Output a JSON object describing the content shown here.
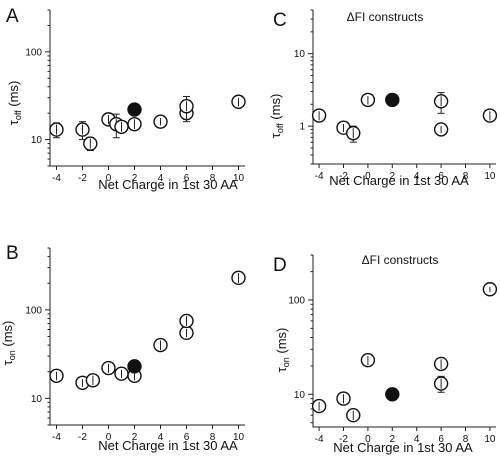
{
  "chart_data": [
    {
      "panel": "A",
      "type": "scatter",
      "title": "",
      "xlabel": "Net Charge in 1st 30 AA",
      "ylabel": "τ_off (ms)",
      "ylabel_main": "τ",
      "ylabel_sub": "off",
      "ylabel_unit": " (ms)",
      "xlim": [
        -4.5,
        10.5
      ],
      "ylim": [
        5,
        300
      ],
      "yscale": "log",
      "xticks": [
        -4,
        -2,
        0,
        2,
        4,
        6,
        8,
        10
      ],
      "yticks": [
        10,
        100
      ],
      "points": [
        {
          "x": -4,
          "y": 13,
          "err": 2.5,
          "filled": false
        },
        {
          "x": -2,
          "y": 13,
          "err": 3,
          "filled": false
        },
        {
          "x": -1.4,
          "y": 9,
          "err": 1.5,
          "filled": false
        },
        {
          "x": 0,
          "y": 17,
          "err": 2,
          "filled": false
        },
        {
          "x": 0.6,
          "y": 15,
          "err": 4.5,
          "filled": false
        },
        {
          "x": 1,
          "y": 14,
          "err": 2,
          "filled": false
        },
        {
          "x": 2,
          "y": 15,
          "err": 2,
          "filled": false
        },
        {
          "x": 2,
          "y": 22,
          "err": 0,
          "filled": true
        },
        {
          "x": 4,
          "y": 16,
          "err": 1.5,
          "filled": false
        },
        {
          "x": 6,
          "y": 20,
          "err": 4,
          "filled": false
        },
        {
          "x": 6,
          "y": 24,
          "err": 7,
          "filled": false
        },
        {
          "x": 10,
          "y": 27,
          "err": 3,
          "filled": false
        }
      ]
    },
    {
      "panel": "B",
      "type": "scatter",
      "title": "",
      "xlabel": "Net Charge in 1st 30 AA",
      "ylabel": "τ_on (ms)",
      "ylabel_main": "τ",
      "ylabel_sub": "on",
      "ylabel_unit": " (ms)",
      "xlim": [
        -4.5,
        10.5
      ],
      "ylim": [
        5,
        500
      ],
      "yscale": "log",
      "xticks": [
        -4,
        -2,
        0,
        2,
        4,
        6,
        8,
        10
      ],
      "yticks": [
        10,
        100
      ],
      "points": [
        {
          "x": -4,
          "y": 18,
          "err": 2,
          "filled": false
        },
        {
          "x": -2,
          "y": 15,
          "err": 1.5,
          "filled": false
        },
        {
          "x": -1.2,
          "y": 16,
          "err": 2,
          "filled": false
        },
        {
          "x": 0,
          "y": 22,
          "err": 2.5,
          "filled": false
        },
        {
          "x": 1,
          "y": 19,
          "err": 2,
          "filled": false
        },
        {
          "x": 2,
          "y": 18,
          "err": 2,
          "filled": false
        },
        {
          "x": 2,
          "y": 23,
          "err": 0,
          "filled": true
        },
        {
          "x": 4,
          "y": 40,
          "err": 5,
          "filled": false
        },
        {
          "x": 6,
          "y": 55,
          "err": 6,
          "filled": false
        },
        {
          "x": 6,
          "y": 75,
          "err": 10,
          "filled": false
        },
        {
          "x": 10,
          "y": 230,
          "err": 30,
          "filled": false
        }
      ]
    },
    {
      "panel": "C",
      "type": "scatter",
      "title": "ΔFI constructs",
      "xlabel": "Net Charge in 1st 30 AA",
      "ylabel": "τ_off (ms)",
      "ylabel_main": "τ",
      "ylabel_sub": "off",
      "ylabel_unit": " (ms)",
      "xlim": [
        -4.5,
        10.5
      ],
      "ylim": [
        0.3,
        40
      ],
      "yscale": "log",
      "xticks": [
        -4,
        -2,
        0,
        2,
        4,
        6,
        8,
        10
      ],
      "yticks": [
        1,
        10
      ],
      "points": [
        {
          "x": -4,
          "y": 1.4,
          "err": 0.2,
          "filled": false
        },
        {
          "x": -2,
          "y": 0.95,
          "err": 0.12,
          "filled": false
        },
        {
          "x": -1.2,
          "y": 0.8,
          "err": 0.2,
          "filled": false
        },
        {
          "x": 0,
          "y": 2.3,
          "err": 0.3,
          "filled": false
        },
        {
          "x": 2,
          "y": 2.3,
          "err": 0,
          "filled": true
        },
        {
          "x": 6,
          "y": 0.9,
          "err": 0.1,
          "filled": false
        },
        {
          "x": 6,
          "y": 2.2,
          "err": 0.7,
          "filled": false
        },
        {
          "x": 10,
          "y": 1.4,
          "err": 0.2,
          "filled": false
        }
      ]
    },
    {
      "panel": "D",
      "type": "scatter",
      "title": "ΔFI constructs",
      "xlabel": "Net Charge in 1st 30 AA",
      "ylabel": "τ_on (ms)",
      "ylabel_main": "τ",
      "ylabel_sub": "on",
      "ylabel_unit": " (ms)",
      "xlim": [
        -4.5,
        10.5
      ],
      "ylim": [
        4.5,
        300
      ],
      "yscale": "log",
      "xticks": [
        -4,
        -2,
        0,
        2,
        4,
        6,
        8,
        10
      ],
      "yticks": [
        10,
        100
      ],
      "points": [
        {
          "x": -4,
          "y": 7.5,
          "err": 0.8,
          "filled": false
        },
        {
          "x": -2,
          "y": 9,
          "err": 1,
          "filled": false
        },
        {
          "x": -1.2,
          "y": 6,
          "err": 0.7,
          "filled": false
        },
        {
          "x": 0,
          "y": 23,
          "err": 2.5,
          "filled": false
        },
        {
          "x": 2,
          "y": 10,
          "err": 0,
          "filled": true
        },
        {
          "x": 6,
          "y": 13,
          "err": 2.5,
          "filled": false
        },
        {
          "x": 6,
          "y": 21,
          "err": 2.5,
          "filled": false
        },
        {
          "x": 10,
          "y": 130,
          "err": 8,
          "filled": false
        }
      ]
    }
  ]
}
